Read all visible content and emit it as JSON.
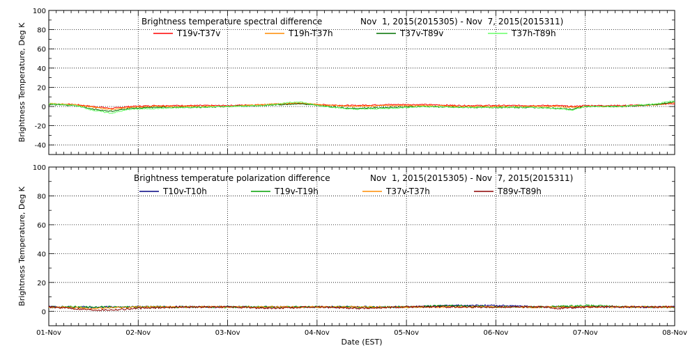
{
  "figure": {
    "xlabel": "Date (EST)",
    "x_tick_labels": [
      "01-Nov",
      "02-Nov",
      "03-Nov",
      "04-Nov",
      "05-Nov",
      "06-Nov",
      "07-Nov",
      "08-Nov"
    ]
  },
  "chart_data": [
    {
      "type": "line",
      "title_left": "Brightness temperature spectral difference",
      "title_right": "Nov  1, 2015(2015305) - Nov  7, 2015(2015311)",
      "xlabel": "",
      "ylabel": "Brightness Temperature, Deg K",
      "xlim": [
        0,
        7
      ],
      "ylim": [
        -50,
        100
      ],
      "yticks": [
        -40,
        -20,
        0,
        20,
        40,
        60,
        80,
        100
      ],
      "grid": true,
      "legend_position": "top",
      "series": [
        {
          "name": "T19v-T37v",
          "color": "#ff0000",
          "x": [
            0,
            0.3,
            0.5,
            0.7,
            0.9,
            1.2,
            1.6,
            2.0,
            2.4,
            2.8,
            3.0,
            3.4,
            3.8,
            4.2,
            4.6,
            5.0,
            5.4,
            5.7,
            5.85,
            6.0,
            6.4,
            6.8,
            7.0
          ],
          "values": [
            3,
            2,
            0,
            -2,
            0,
            1,
            1,
            1,
            2,
            3,
            2,
            1,
            2,
            2,
            1,
            1,
            1,
            1,
            0,
            1,
            1,
            2,
            3
          ]
        },
        {
          "name": "T19h-T37h",
          "color": "#ff8c00",
          "x": [
            0,
            0.3,
            0.5,
            0.7,
            0.9,
            1.2,
            1.6,
            2.0,
            2.4,
            2.8,
            3.0,
            3.4,
            3.8,
            4.2,
            4.6,
            5.0,
            5.4,
            5.7,
            5.85,
            6.0,
            6.4,
            6.8,
            7.0
          ],
          "values": [
            3,
            2,
            -1,
            -3,
            -1,
            0,
            0,
            0,
            2,
            4,
            2,
            0,
            1,
            1,
            0,
            0,
            0,
            0,
            -1,
            0,
            0,
            2,
            4
          ]
        },
        {
          "name": "T37v-T89v",
          "color": "#007000",
          "x": [
            0,
            0.3,
            0.5,
            0.7,
            0.9,
            1.2,
            1.6,
            2.0,
            2.4,
            2.8,
            3.0,
            3.4,
            3.8,
            4.2,
            4.6,
            5.0,
            5.4,
            5.7,
            5.85,
            6.0,
            6.4,
            6.8,
            7.0
          ],
          "values": [
            2,
            1,
            -3,
            -5,
            -2,
            -1,
            -1,
            0,
            1,
            3,
            1,
            -2,
            -1,
            0,
            -1,
            -1,
            -1,
            -2,
            -3,
            0,
            0,
            2,
            5
          ]
        },
        {
          "name": "T37h-T89h",
          "color": "#66ff66",
          "x": [
            0,
            0.3,
            0.5,
            0.7,
            0.9,
            1.2,
            1.6,
            2.0,
            2.4,
            2.8,
            3.0,
            3.4,
            3.8,
            4.2,
            4.6,
            5.0,
            5.4,
            5.7,
            5.85,
            6.0,
            6.4,
            6.8,
            7.0
          ],
          "values": [
            3,
            1,
            -4,
            -7,
            -3,
            -2,
            -1,
            0,
            1,
            5,
            1,
            -3,
            -2,
            0,
            -1,
            -1,
            -1,
            -2,
            -4,
            0,
            0,
            3,
            6
          ]
        }
      ]
    },
    {
      "type": "line",
      "title_left": "Brightness temperature polarization difference",
      "title_right": "Nov  1, 2015(2015305) - Nov  7, 2015(2015311)",
      "xlabel": "Date (EST)",
      "ylabel": "Brightness Temperature, Deg K",
      "xlim": [
        0,
        7
      ],
      "ylim": [
        -10,
        100
      ],
      "yticks": [
        0,
        20,
        40,
        60,
        80,
        100
      ],
      "grid": true,
      "legend_position": "top",
      "series": [
        {
          "name": "T10v-T10h",
          "color": "#000080",
          "x": [
            0,
            0.5,
            1.0,
            1.5,
            2.0,
            2.5,
            3.0,
            3.5,
            4.0,
            4.5,
            5.0,
            5.5,
            6.0,
            6.5,
            7.0
          ],
          "values": [
            3,
            3,
            3,
            3,
            3,
            3,
            3,
            3,
            3,
            4,
            4,
            3,
            3,
            3,
            3
          ]
        },
        {
          "name": "T19v-T19h",
          "color": "#00a000",
          "x": [
            0,
            0.5,
            1.0,
            1.5,
            2.0,
            2.5,
            3.0,
            3.5,
            4.0,
            4.5,
            5.0,
            5.5,
            6.0,
            6.5,
            7.0
          ],
          "values": [
            3,
            3,
            3,
            3,
            3,
            3,
            3,
            3,
            3,
            4,
            3,
            3,
            4,
            3,
            3
          ]
        },
        {
          "name": "T37v-T37h",
          "color": "#ff8c00",
          "x": [
            0,
            0.5,
            1.0,
            1.5,
            2.0,
            2.5,
            3.0,
            3.5,
            4.0,
            4.5,
            5.0,
            5.5,
            6.0,
            6.5,
            7.0
          ],
          "values": [
            3,
            2,
            3,
            3,
            3,
            3,
            3,
            3,
            3,
            3,
            3,
            3,
            3,
            3,
            3
          ]
        },
        {
          "name": "T89v-T89h",
          "color": "#8b0000",
          "x": [
            0,
            0.5,
            0.7,
            1.0,
            1.5,
            2.0,
            2.5,
            3.0,
            3.5,
            4.0,
            4.5,
            5.0,
            5.5,
            5.7,
            6.0,
            6.5,
            7.0
          ],
          "values": [
            3,
            1,
            1,
            2,
            3,
            3,
            2,
            3,
            2,
            3,
            3,
            3,
            3,
            2,
            3,
            3,
            3
          ]
        }
      ]
    }
  ]
}
